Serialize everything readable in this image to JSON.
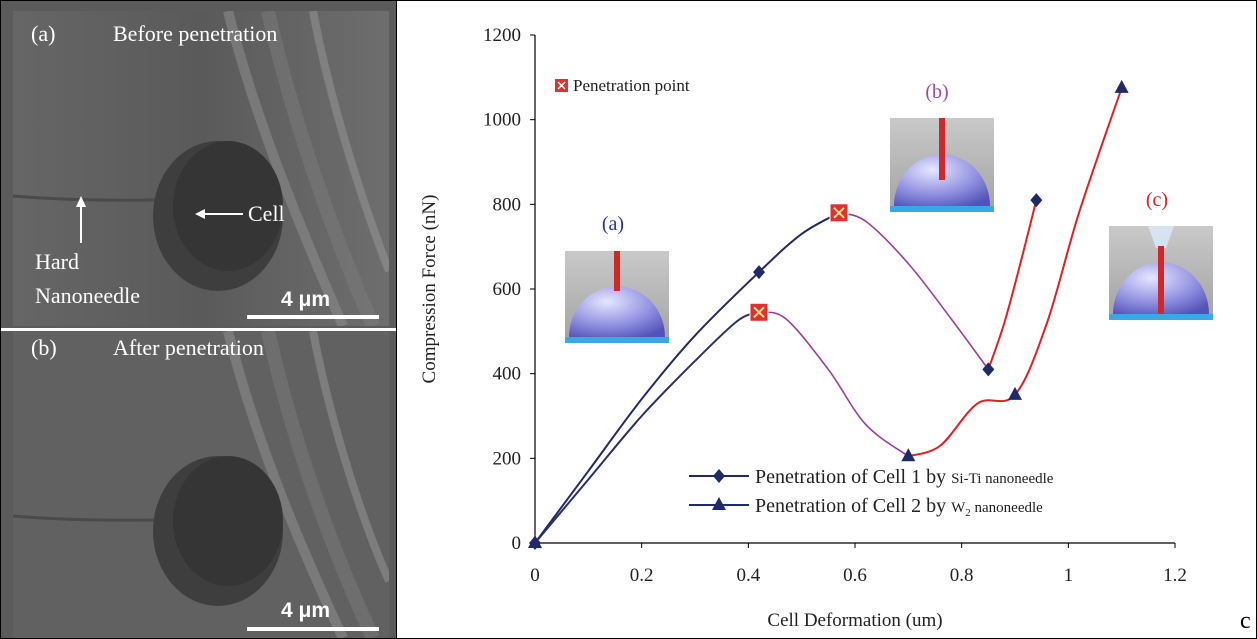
{
  "left_panel": {
    "top": {
      "letter": "(a)",
      "caption": "Before penetration",
      "cell_label": "Cell",
      "needle_label_1": "Hard",
      "needle_label_2": "Nanoneedle",
      "scale": "4 μm"
    },
    "bottom": {
      "letter": "(b)",
      "caption": "After penetration",
      "scale": "4 μm"
    }
  },
  "corner_label": "c",
  "chart_data": {
    "type": "line",
    "xlabel": "Cell Deformation (um)",
    "ylabel": "Compression Force (nN)",
    "xlim": [
      0,
      1.2
    ],
    "ylim": [
      0,
      1200
    ],
    "x_ticks": [
      "0",
      "0.2",
      "0.4",
      "0.6",
      "0.8",
      "1",
      "1.2"
    ],
    "y_ticks": [
      "0",
      "200",
      "400",
      "600",
      "800",
      "1000",
      "1200"
    ],
    "grid": false,
    "legend_position": "bottom-right",
    "penetration_legend": "Penetration point",
    "series": [
      {
        "name": "Penetration of Cell 1 by ",
        "name_needle": "Si-Ti nanoneedle",
        "marker": "diamond",
        "color_before": "#1f2a6b",
        "color_after": "#9b3d9b",
        "points": [
          [
            0,
            0
          ],
          [
            0.42,
            640
          ],
          [
            0.57,
            780
          ],
          [
            0.85,
            410
          ],
          [
            0.94,
            810
          ]
        ],
        "curve": [
          [
            0,
            0
          ],
          [
            0.1,
            170
          ],
          [
            0.2,
            340
          ],
          [
            0.3,
            490
          ],
          [
            0.42,
            640
          ],
          [
            0.5,
            730
          ],
          [
            0.57,
            780
          ],
          [
            0.62,
            760
          ],
          [
            0.7,
            660
          ],
          [
            0.78,
            530
          ],
          [
            0.85,
            410
          ],
          [
            0.88,
            520
          ],
          [
            0.91,
            660
          ],
          [
            0.94,
            810
          ]
        ],
        "penetration": [
          0.57,
          780
        ]
      },
      {
        "name": "Penetration of Cell 2 by ",
        "name_needle": "W",
        "name_sub": "2",
        "name_tail": " nanoneedle",
        "marker": "triangle",
        "color_before": "#9b3d9b",
        "color_after": "#e02020",
        "points": [
          [
            0,
            0
          ],
          [
            0.42,
            545
          ],
          [
            0.7,
            205
          ],
          [
            0.9,
            350
          ],
          [
            1.1,
            1075
          ]
        ],
        "curve": [
          [
            0,
            0
          ],
          [
            0.1,
            150
          ],
          [
            0.2,
            300
          ],
          [
            0.3,
            430
          ],
          [
            0.38,
            525
          ],
          [
            0.42,
            545
          ],
          [
            0.47,
            530
          ],
          [
            0.55,
            410
          ],
          [
            0.62,
            280
          ],
          [
            0.7,
            205
          ],
          [
            0.76,
            230
          ],
          [
            0.83,
            330
          ],
          [
            0.9,
            350
          ],
          [
            0.96,
            520
          ],
          [
            1.02,
            780
          ],
          [
            1.1,
            1075
          ]
        ],
        "penetration": [
          0.42,
          545
        ]
      }
    ],
    "insets": [
      {
        "label": "(a)",
        "color": "#2b3590"
      },
      {
        "label": "(b)",
        "color": "#a0489e"
      },
      {
        "label": "(c)",
        "color": "#d42020"
      }
    ]
  }
}
